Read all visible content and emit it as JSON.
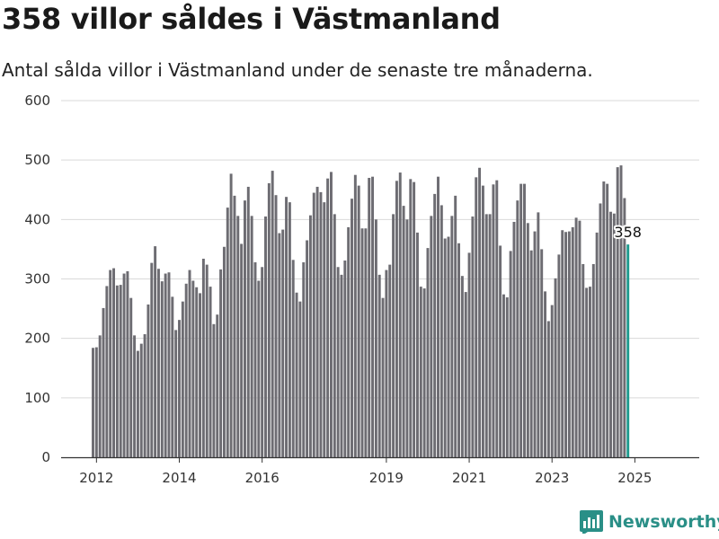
{
  "title": "358 villor såldes i Västmanland",
  "subtitle": "Antal sålda villor i Västmanland under de senaste tre månaderna.",
  "brand": {
    "name": "Newsworthy",
    "icon": "newsworthy-logo-icon"
  },
  "colors": {
    "bar": "#6d6c72",
    "highlight": "#1f9b8f",
    "grid": "#d9d9d9",
    "axis": "#333333",
    "brand": "#2a8f87"
  },
  "chart_data": {
    "type": "bar",
    "ylim": [
      0,
      600
    ],
    "yticks": [
      0,
      100,
      200,
      300,
      400,
      500,
      600
    ],
    "xlabel": "",
    "ylabel": "",
    "x_tick_labels": [
      "2012",
      "2014",
      "2016",
      "2019",
      "2021",
      "2023",
      "2025"
    ],
    "x_tick_positions": [
      "2012-02",
      "2014-02",
      "2016-02",
      "2019-02",
      "2021-02",
      "2023-02",
      "2025-02"
    ],
    "start_month": "2012-01",
    "values": [
      184,
      185,
      205,
      251,
      288,
      315,
      318,
      289,
      290,
      309,
      313,
      268,
      205,
      179,
      191,
      207,
      257,
      327,
      355,
      317,
      296,
      309,
      311,
      270,
      214,
      231,
      262,
      292,
      315,
      297,
      286,
      276,
      334,
      324,
      287,
      224,
      240,
      316,
      354,
      420,
      477,
      440,
      406,
      359,
      432,
      455,
      406,
      328,
      297,
      320,
      405,
      461,
      482,
      441,
      377,
      383,
      438,
      429,
      332,
      277,
      262,
      328,
      365,
      407,
      445,
      455,
      446,
      429,
      469,
      480,
      409,
      320,
      307,
      331,
      387,
      435,
      475,
      457,
      385,
      385,
      470,
      472,
      400,
      307,
      268,
      315,
      324,
      409,
      465,
      479,
      423,
      400,
      468,
      463,
      378,
      287,
      284,
      352,
      406,
      443,
      472,
      424,
      368,
      371,
      406,
      440,
      360,
      305,
      278,
      344,
      405,
      471,
      487,
      457,
      409,
      409,
      459,
      466,
      356,
      274,
      269,
      347,
      396,
      432,
      460,
      460,
      394,
      348,
      380,
      412,
      350,
      279,
      229,
      256,
      301,
      341,
      382,
      379,
      380,
      387,
      403,
      398,
      325,
      285,
      287,
      325,
      378,
      427,
      464,
      460,
      413,
      410,
      488,
      491,
      436,
      358
    ],
    "last_value": 358,
    "last_value_label": "358"
  }
}
